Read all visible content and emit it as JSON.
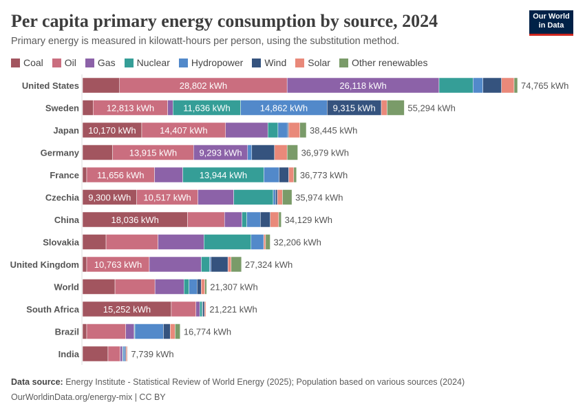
{
  "title": "Per capita primary energy consumption by source, 2024",
  "subtitle": "Primary energy is measured in kilowatt-hours per person, using the substitution method.",
  "logo": {
    "line1": "Our World",
    "line2": "in Data",
    "bg": "#002147",
    "accent": "#ce261e"
  },
  "footer": {
    "source_label": "Data source:",
    "source_text": "Energy Institute - Statistical Review of World Energy (2025); Population based on various sources (2024)",
    "url": "OurWorldinData.org/energy-mix | CC BY"
  },
  "chart_data": {
    "type": "bar",
    "orientation": "horizontal",
    "stacked": true,
    "unit": "kWh",
    "legend_position": "top",
    "grid": false,
    "categories": [
      "United States",
      "Sweden",
      "Japan",
      "Germany",
      "France",
      "Czechia",
      "China",
      "Slovakia",
      "United Kingdom",
      "World",
      "South Africa",
      "Brazil",
      "India"
    ],
    "totals": [
      "74,765 kWh",
      "55,294 kWh",
      "38,445 kWh",
      "36,979 kWh",
      "36,773 kWh",
      "35,974 kWh",
      "34,129 kWh",
      "32,206 kWh",
      "27,324 kWh",
      "21,307 kWh",
      "21,221 kWh",
      "16,774 kWh",
      "7,739 kWh"
    ],
    "series": [
      {
        "name": "Coal",
        "color": "#a2555f",
        "values": [
          6355,
          1810,
          10170,
          5160,
          710,
          9300,
          18036,
          4030,
          710,
          5570,
          15252,
          710,
          4370
        ]
      },
      {
        "name": "Oil",
        "color": "#ca6e7f",
        "values": [
          28802,
          12813,
          14407,
          13915,
          11656,
          10517,
          6360,
          8930,
          10763,
          6870,
          4230,
          6700,
          2090
        ]
      },
      {
        "name": "Gas",
        "color": "#8c62a8",
        "values": [
          26118,
          910,
          7270,
          9293,
          4850,
          6160,
          3000,
          7900,
          8930,
          4980,
          670,
          1460,
          400
        ]
      },
      {
        "name": "Nuclear",
        "color": "#359e97",
        "values": [
          5830,
          11636,
          1740,
          0,
          13944,
          6790,
          830,
          8100,
          1420,
          870,
          400,
          120,
          120
        ]
      },
      {
        "name": "Hydropower",
        "color": "#5289ca",
        "values": [
          1700,
          14862,
          1660,
          710,
          2610,
          400,
          2330,
          2170,
          240,
          1380,
          80,
          4900,
          320
        ]
      },
      {
        "name": "Wind",
        "color": "#35537e",
        "values": [
          3200,
          9315,
          160,
          3910,
          1660,
          320,
          1700,
          0,
          2920,
          710,
          320,
          1180,
          160
        ]
      },
      {
        "name": "Solar",
        "color": "#e9897a",
        "values": [
          2170,
          990,
          1940,
          2170,
          870,
          870,
          1460,
          320,
          550,
          630,
          240,
          830,
          200
        ]
      },
      {
        "name": "Other renewables",
        "color": "#7a9b69",
        "values": [
          590,
          2960,
          1100,
          1820,
          470,
          1620,
          430,
          790,
          1780,
          320,
          30,
          870,
          80
        ]
      }
    ],
    "segment_labels": [
      {
        "category": "United States",
        "series": "Oil",
        "text": "28,802 kWh"
      },
      {
        "category": "United States",
        "series": "Gas",
        "text": "26,118 kWh"
      },
      {
        "category": "Sweden",
        "series": "Oil",
        "text": "12,813 kWh"
      },
      {
        "category": "Sweden",
        "series": "Nuclear",
        "text": "11,636 kWh"
      },
      {
        "category": "Sweden",
        "series": "Hydropower",
        "text": "14,862 kWh"
      },
      {
        "category": "Sweden",
        "series": "Wind",
        "text": "9,315 kWh"
      },
      {
        "category": "Japan",
        "series": "Coal",
        "text": "10,170 kWh"
      },
      {
        "category": "Japan",
        "series": "Oil",
        "text": "14,407 kWh"
      },
      {
        "category": "Germany",
        "series": "Oil",
        "text": "13,915 kWh"
      },
      {
        "category": "Germany",
        "series": "Gas",
        "text": "9,293 kWh"
      },
      {
        "category": "France",
        "series": "Oil",
        "text": "11,656 kWh"
      },
      {
        "category": "France",
        "series": "Nuclear",
        "text": "13,944 kWh"
      },
      {
        "category": "Czechia",
        "series": "Coal",
        "text": "9,300 kWh"
      },
      {
        "category": "Czechia",
        "series": "Oil",
        "text": "10,517 kWh"
      },
      {
        "category": "China",
        "series": "Coal",
        "text": "18,036 kWh"
      },
      {
        "category": "United Kingdom",
        "series": "Oil",
        "text": "10,763 kWh"
      },
      {
        "category": "South Africa",
        "series": "Coal",
        "text": "15,252 kWh"
      }
    ]
  }
}
